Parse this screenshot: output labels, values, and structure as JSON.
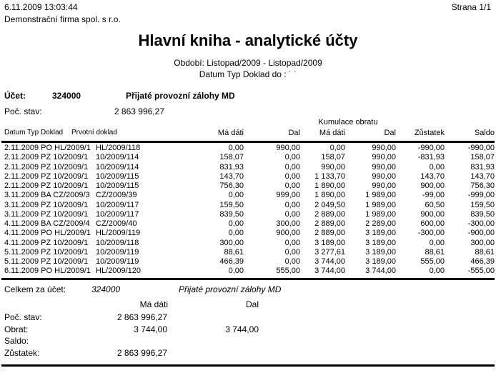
{
  "page": {
    "printed_at": "6.11.2009 13:03:44",
    "page_label": "Strana 1/1",
    "company": "Demonstrační firma spol. s r.o.",
    "title": "Hlavní kniha - analytické účty",
    "period": "Období: Listopad/2009 - Listopad/2009",
    "filter": "Datum Typ Doklad do : ˙ ˙"
  },
  "account": {
    "label": "Účet:",
    "number": "324000",
    "name": "Přijaté provozní zálohy MD",
    "opening_label": "Poč. stav:",
    "opening_value": "2 863 996,27"
  },
  "table": {
    "kumulace_label": "Kumulace obratu",
    "headers": [
      "Datum Typ Doklad",
      "Prvotní doklad",
      "Má dáti",
      "Dal",
      "Má dáti",
      "Dal",
      "Zůstatek",
      "Saldo"
    ],
    "rows": [
      [
        "2.11.2009 PO HL/2009/1",
        "HL/2009/118",
        "0,00",
        "990,00",
        "0,00",
        "990,00",
        "-990,00",
        "-990,00"
      ],
      [
        "2.11.2009 PZ 10/2009/1",
        "10/2009/114",
        "158,07",
        "0,00",
        "158,07",
        "990,00",
        "-831,93",
        "158,07"
      ],
      [
        "2.11.2009 PZ 10/2009/1",
        "10/2009/114",
        "831,93",
        "0,00",
        "990,00",
        "990,00",
        "0,00",
        "831,93"
      ],
      [
        "2.11.2009 PZ 10/2009/1",
        "10/2009/115",
        "143,70",
        "0,00",
        "1 133,70",
        "990,00",
        "143,70",
        "143,70"
      ],
      [
        "2.11.2009 PZ 10/2009/1",
        "10/2009/115",
        "756,30",
        "0,00",
        "1 890,00",
        "990,00",
        "900,00",
        "756,30"
      ],
      [
        "3.11.2009 BA CZ/2009/3",
        "CZ/2009/39",
        "0,00",
        "999,00",
        "1 890,00",
        "1 989,00",
        "-99,00",
        "-999,00"
      ],
      [
        "3.11.2009 PZ 10/2009/1",
        "10/2009/117",
        "159,50",
        "0,00",
        "2 049,50",
        "1 989,00",
        "60,50",
        "159,50"
      ],
      [
        "3.11.2009 PZ 10/2009/1",
        "10/2009/117",
        "839,50",
        "0,00",
        "2 889,00",
        "1 989,00",
        "900,00",
        "839,50"
      ],
      [
        "4.11.2009 BA CZ/2009/4",
        "CZ/2009/40",
        "0,00",
        "300,00",
        "2 889,00",
        "2 289,00",
        "600,00",
        "-300,00"
      ],
      [
        "4.11.2009 PO HL/2009/1",
        "HL/2009/119",
        "0,00",
        "900,00",
        "2 889,00",
        "3 189,00",
        "-300,00",
        "-900,00"
      ],
      [
        "4.11.2009 PZ 10/2009/1",
        "10/2009/118",
        "300,00",
        "0,00",
        "3 189,00",
        "3 189,00",
        "0,00",
        "300,00"
      ],
      [
        "5.11.2009 PZ 10/2009/1",
        "10/2009/119",
        "88,61",
        "0,00",
        "3 277,61",
        "3 189,00",
        "88,61",
        "88,61"
      ],
      [
        "5.11.2009 PZ 10/2009/1",
        "10/2009/119",
        "466,39",
        "0,00",
        "3 744,00",
        "3 189,00",
        "555,00",
        "466,39"
      ],
      [
        "6.11.2009 PO HL/2009/1",
        "HL/2009/120",
        "0,00",
        "555,00",
        "3 744,00",
        "3 744,00",
        "0,00",
        "-555,00"
      ]
    ]
  },
  "summary": {
    "label": "Celkem za účet:",
    "number": "324000",
    "name": "Přijaté provozní zálohy MD",
    "col_md": "Má dáti",
    "col_dal": "Dal",
    "lines": [
      {
        "label": "Poč. stav:",
        "md": "2 863 996,27",
        "dal": ""
      },
      {
        "label": "Obrat:",
        "md": "3 744,00",
        "dal": "3 744,00"
      },
      {
        "label": "Saldo:",
        "md": "",
        "dal": ""
      },
      {
        "label": "Zůstatek:",
        "md": "2 863 996,27",
        "dal": ""
      }
    ]
  }
}
